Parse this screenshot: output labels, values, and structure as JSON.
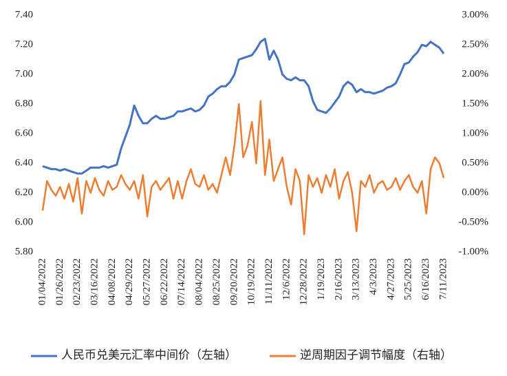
{
  "chart_data": {
    "type": "line",
    "categories": [
      "01/04/2022",
      null,
      null,
      null,
      "01/26/2022",
      null,
      null,
      null,
      "02/23/2022",
      null,
      null,
      null,
      "03/16/2022",
      null,
      null,
      null,
      "04/08/2022",
      null,
      null,
      null,
      "04/29/2022",
      null,
      null,
      null,
      "05/27/2022",
      null,
      null,
      null,
      "06/22/2022",
      null,
      null,
      null,
      "07/14/2022",
      null,
      null,
      null,
      "08/04/2022",
      null,
      null,
      null,
      "08/25/2022",
      null,
      null,
      null,
      "09/20/2022",
      null,
      null,
      null,
      "10/19/2022",
      null,
      null,
      null,
      "11/11/2022",
      null,
      null,
      null,
      "12/6/2022",
      null,
      null,
      null,
      "12/28/2022",
      null,
      null,
      null,
      "1/19/2023",
      null,
      null,
      null,
      "2/16/2023",
      null,
      null,
      null,
      "3/13/2023",
      null,
      null,
      null,
      "4/3/2023",
      null,
      null,
      null,
      "4/27/2023",
      null,
      null,
      null,
      "5/25/2023",
      null,
      null,
      null,
      "6/16/2023",
      null,
      null,
      null,
      "7/11/2023"
    ],
    "series": [
      {
        "name": "人民币兑美元汇率中间价（左轴）",
        "color": "#4472c4",
        "axis": "y",
        "values": [
          6.38,
          6.37,
          6.36,
          6.36,
          6.35,
          6.36,
          6.35,
          6.34,
          6.33,
          6.33,
          6.35,
          6.37,
          6.37,
          6.37,
          6.38,
          6.37,
          6.38,
          6.39,
          6.5,
          6.58,
          6.66,
          6.79,
          6.72,
          6.67,
          6.67,
          6.7,
          6.72,
          6.7,
          6.7,
          6.71,
          6.72,
          6.75,
          6.75,
          6.76,
          6.77,
          6.75,
          6.76,
          6.79,
          6.85,
          6.87,
          6.9,
          6.92,
          6.92,
          6.95,
          7.0,
          7.1,
          7.11,
          7.12,
          7.13,
          7.17,
          7.22,
          7.24,
          7.1,
          7.16,
          7.1,
          7.0,
          6.97,
          6.96,
          6.98,
          6.96,
          6.96,
          6.92,
          6.82,
          6.76,
          6.75,
          6.74,
          6.77,
          6.81,
          6.85,
          6.92,
          6.95,
          6.93,
          6.88,
          6.9,
          6.88,
          6.88,
          6.87,
          6.88,
          6.89,
          6.91,
          6.92,
          6.94,
          7.0,
          7.07,
          7.08,
          7.12,
          7.15,
          7.2,
          7.19,
          7.22,
          7.2,
          7.18,
          7.14
        ]
      },
      {
        "name": "逆周期因子调节幅度（右轴）",
        "color": "#ed7d31",
        "axis": "y2",
        "values": [
          -0.3,
          0.2,
          0.05,
          -0.05,
          0.1,
          -0.1,
          0.15,
          -0.15,
          0.25,
          -0.35,
          0.2,
          0.0,
          0.25,
          0.05,
          -0.05,
          0.2,
          0.05,
          0.1,
          0.3,
          0.15,
          0.05,
          0.2,
          -0.1,
          0.3,
          -0.4,
          0.1,
          0.2,
          0.05,
          0.15,
          0.25,
          -0.1,
          0.2,
          -0.1,
          0.2,
          0.4,
          0.15,
          0.1,
          0.3,
          0.05,
          0.15,
          0.0,
          0.3,
          0.6,
          0.3,
          0.8,
          1.5,
          0.6,
          0.8,
          1.2,
          0.5,
          1.55,
          0.3,
          0.9,
          0.2,
          0.4,
          0.6,
          0.1,
          -0.2,
          0.4,
          0.2,
          -0.7,
          0.3,
          0.1,
          0.25,
          0.0,
          0.3,
          0.1,
          0.4,
          -0.1,
          0.2,
          0.35,
          0.0,
          -0.65,
          0.2,
          0.1,
          0.3,
          0.0,
          0.15,
          0.2,
          0.05,
          0.1,
          0.25,
          0.05,
          0.2,
          0.3,
          0.1,
          0.0,
          0.2,
          -0.35,
          0.4,
          0.6,
          0.5,
          0.25
        ]
      }
    ],
    "ylim": [
      5.8,
      7.4
    ],
    "yticks": [
      {
        "value": 5.8,
        "label": "5.80"
      },
      {
        "value": 6.0,
        "label": "6.00"
      },
      {
        "value": 6.2,
        "label": "6.20"
      },
      {
        "value": 6.4,
        "label": "6.40"
      },
      {
        "value": 6.6,
        "label": "6.60"
      },
      {
        "value": 6.8,
        "label": "6.80"
      },
      {
        "value": 7.0,
        "label": "7.00"
      },
      {
        "value": 7.2,
        "label": "7.20"
      },
      {
        "value": 7.4,
        "label": "7.40"
      }
    ],
    "y2lim": [
      -1,
      3
    ],
    "y2ticks": [
      {
        "value": -1,
        "label": "-1.00%"
      },
      {
        "value": -0.5,
        "label": "-0.50%"
      },
      {
        "value": 0,
        "label": "0.00%"
      },
      {
        "value": 0.5,
        "label": "0.50%"
      },
      {
        "value": 1,
        "label": "1.00%"
      },
      {
        "value": 1.5,
        "label": "1.50%"
      },
      {
        "value": 2,
        "label": "2.00%"
      },
      {
        "value": 2.5,
        "label": "2.50%"
      },
      {
        "value": 3,
        "label": "3.00%"
      }
    ],
    "legend": "bottom"
  }
}
